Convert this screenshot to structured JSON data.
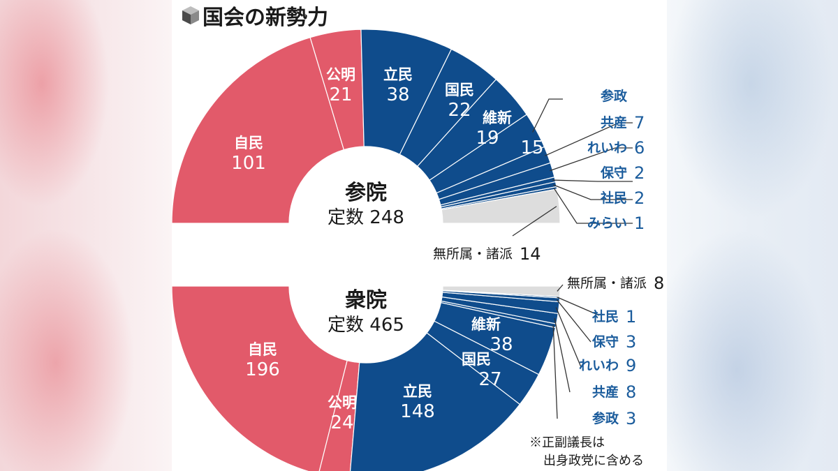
{
  "title": "国会の新勢力",
  "note": [
    "※正副議長は",
    "出身政党に含める"
  ],
  "colors": {
    "ruling": "#e25a6a",
    "opposition": "#0f4c8c",
    "independent": "#dddddd",
    "label_blue": "#1b5c9c",
    "text_dark": "#1a1a1a"
  },
  "chart_data": [
    {
      "type": "pie",
      "chamber": "参院",
      "total_label": "定数",
      "total": 248,
      "categories": [
        "自民",
        "公明",
        "立民",
        "国民",
        "維新",
        "参政",
        "共産",
        "れいわ",
        "保守",
        "社民",
        "みらい",
        "無所属・諸派"
      ],
      "values": [
        101,
        21,
        38,
        22,
        19,
        15,
        7,
        6,
        2,
        2,
        1,
        14
      ]
    },
    {
      "type": "pie",
      "chamber": "衆院",
      "total_label": "定数",
      "total": 465,
      "categories": [
        "自民",
        "公明",
        "立民",
        "国民",
        "維新",
        "参政",
        "共産",
        "れいわ",
        "保守",
        "社民",
        "無所属・諸派"
      ],
      "values": [
        196,
        24,
        148,
        27,
        38,
        3,
        8,
        9,
        3,
        1,
        8
      ]
    }
  ]
}
